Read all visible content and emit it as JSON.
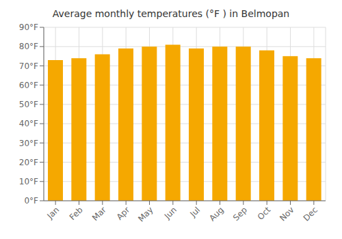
{
  "chart_data": {
    "type": "bar",
    "title": "Average monthly temperatures (°F ) in Belmopan",
    "categories": [
      "Jan",
      "Feb",
      "Mar",
      "Apr",
      "May",
      "Jun",
      "Jul",
      "Aug",
      "Sep",
      "Oct",
      "Nov",
      "Dec"
    ],
    "values": [
      73,
      74,
      76,
      79,
      80,
      81,
      79,
      80,
      80,
      78,
      75,
      74
    ],
    "color": "#F5A800",
    "ylim": [
      0,
      90
    ],
    "yticks": [
      {
        "value": 0,
        "label": "0°F"
      },
      {
        "value": 10,
        "label": "10°F"
      },
      {
        "value": 20,
        "label": "20°F"
      },
      {
        "value": 30,
        "label": "30°F"
      },
      {
        "value": 40,
        "label": "40°F"
      },
      {
        "value": 50,
        "label": "50°F"
      },
      {
        "value": 60,
        "label": "60°F"
      },
      {
        "value": 70,
        "label": "70°F"
      },
      {
        "value": 80,
        "label": "80°F"
      },
      {
        "value": 90,
        "label": "90°F"
      }
    ],
    "grid": true
  }
}
